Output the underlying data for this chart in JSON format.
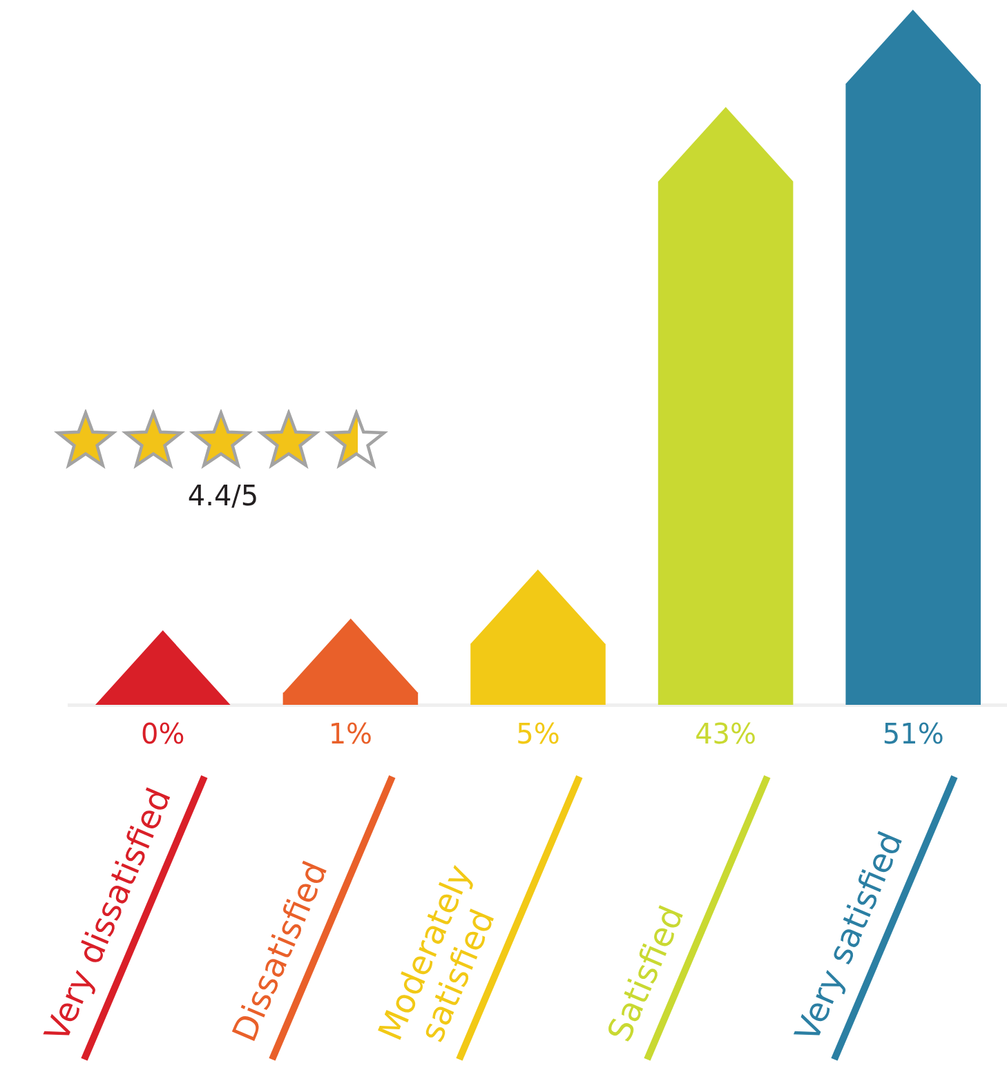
{
  "chart_data": {
    "type": "bar",
    "categories": [
      "Very dissatisfied",
      "Dissatisfied",
      "Moderately satisfied",
      "Satisfied",
      "Very satisfied"
    ],
    "values": [
      0,
      1,
      5,
      43,
      51
    ],
    "colors": [
      "#d91f28",
      "#e9602a",
      "#f2c916",
      "#c9d932",
      "#2b7fa3"
    ],
    "value_labels": [
      "0%",
      "1%",
      "5%",
      "43%",
      "51%"
    ],
    "annotations": [
      "4.4/5"
    ]
  }
}
